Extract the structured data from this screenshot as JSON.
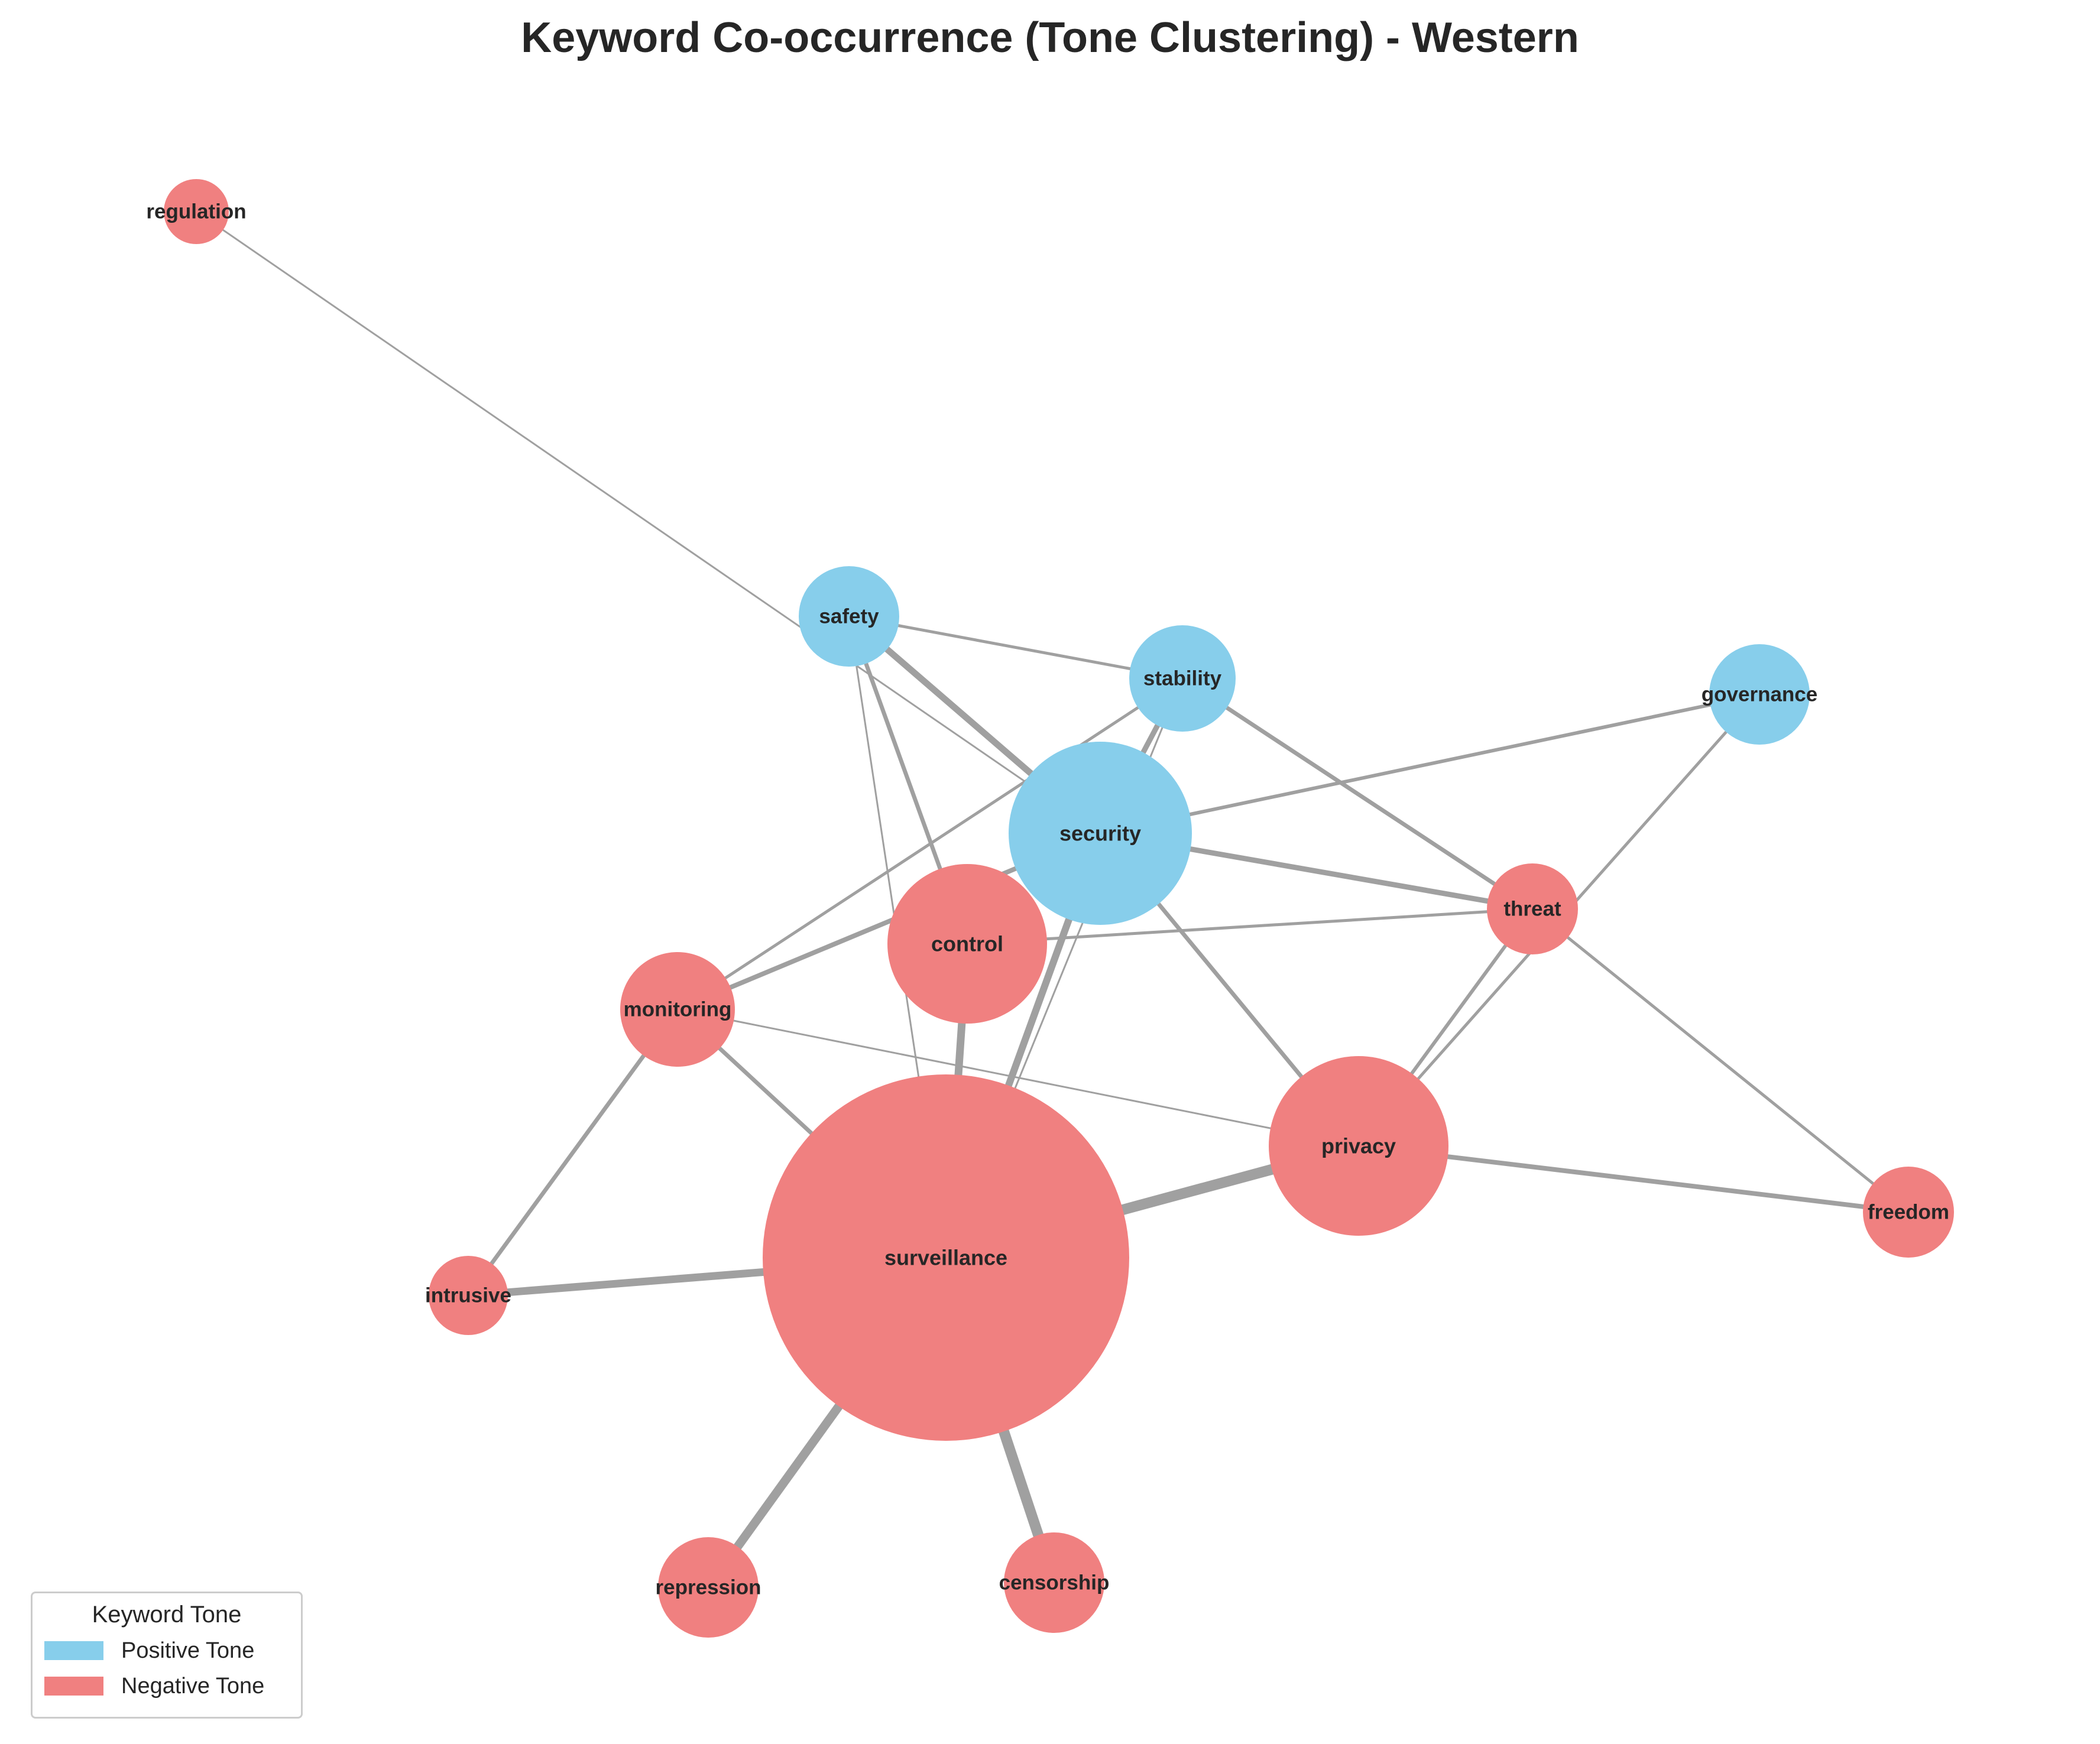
{
  "title": "Keyword Co-occurrence (Tone Clustering) - Western",
  "colors": {
    "positive": "#87CEEB",
    "negative": "#F08080",
    "edge": "#a0a0a0",
    "text": "#262626"
  },
  "legend": {
    "title": "Keyword Tone",
    "items": [
      {
        "label": "Positive Tone",
        "tone": "positive"
      },
      {
        "label": "Negative Tone",
        "tone": "negative"
      }
    ]
  },
  "nodes": [
    {
      "id": "regulation",
      "label": "regulation",
      "tone": "negative"
    },
    {
      "id": "safety",
      "label": "safety",
      "tone": "positive"
    },
    {
      "id": "stability",
      "label": "stability",
      "tone": "positive"
    },
    {
      "id": "governance",
      "label": "governance",
      "tone": "positive"
    },
    {
      "id": "security",
      "label": "security",
      "tone": "positive"
    },
    {
      "id": "threat",
      "label": "threat",
      "tone": "negative"
    },
    {
      "id": "control",
      "label": "control",
      "tone": "negative"
    },
    {
      "id": "monitoring",
      "label": "monitoring",
      "tone": "negative"
    },
    {
      "id": "privacy",
      "label": "privacy",
      "tone": "negative"
    },
    {
      "id": "freedom",
      "label": "freedom",
      "tone": "negative"
    },
    {
      "id": "surveillance",
      "label": "surveillance",
      "tone": "negative"
    },
    {
      "id": "intrusive",
      "label": "intrusive",
      "tone": "negative"
    },
    {
      "id": "repression",
      "label": "repression",
      "tone": "negative"
    },
    {
      "id": "censorship",
      "label": "censorship",
      "tone": "negative"
    }
  ],
  "edges": [
    {
      "source": "regulation",
      "target": "security"
    },
    {
      "source": "safety",
      "target": "stability"
    },
    {
      "source": "safety",
      "target": "security"
    },
    {
      "source": "safety",
      "target": "control"
    },
    {
      "source": "safety",
      "target": "surveillance"
    },
    {
      "source": "stability",
      "target": "security"
    },
    {
      "source": "stability",
      "target": "threat"
    },
    {
      "source": "stability",
      "target": "monitoring"
    },
    {
      "source": "stability",
      "target": "surveillance"
    },
    {
      "source": "governance",
      "target": "security"
    },
    {
      "source": "governance",
      "target": "privacy"
    },
    {
      "source": "security",
      "target": "threat"
    },
    {
      "source": "security",
      "target": "privacy"
    },
    {
      "source": "security",
      "target": "surveillance"
    },
    {
      "source": "security",
      "target": "monitoring"
    },
    {
      "source": "control",
      "target": "threat"
    },
    {
      "source": "control",
      "target": "surveillance"
    },
    {
      "source": "threat",
      "target": "privacy"
    },
    {
      "source": "threat",
      "target": "freedom"
    },
    {
      "source": "monitoring",
      "target": "privacy"
    },
    {
      "source": "monitoring",
      "target": "surveillance"
    },
    {
      "source": "monitoring",
      "target": "intrusive"
    },
    {
      "source": "privacy",
      "target": "surveillance"
    },
    {
      "source": "privacy",
      "target": "freedom"
    },
    {
      "source": "surveillance",
      "target": "intrusive"
    },
    {
      "source": "surveillance",
      "target": "repression"
    },
    {
      "source": "surveillance",
      "target": "censorship"
    }
  ]
}
